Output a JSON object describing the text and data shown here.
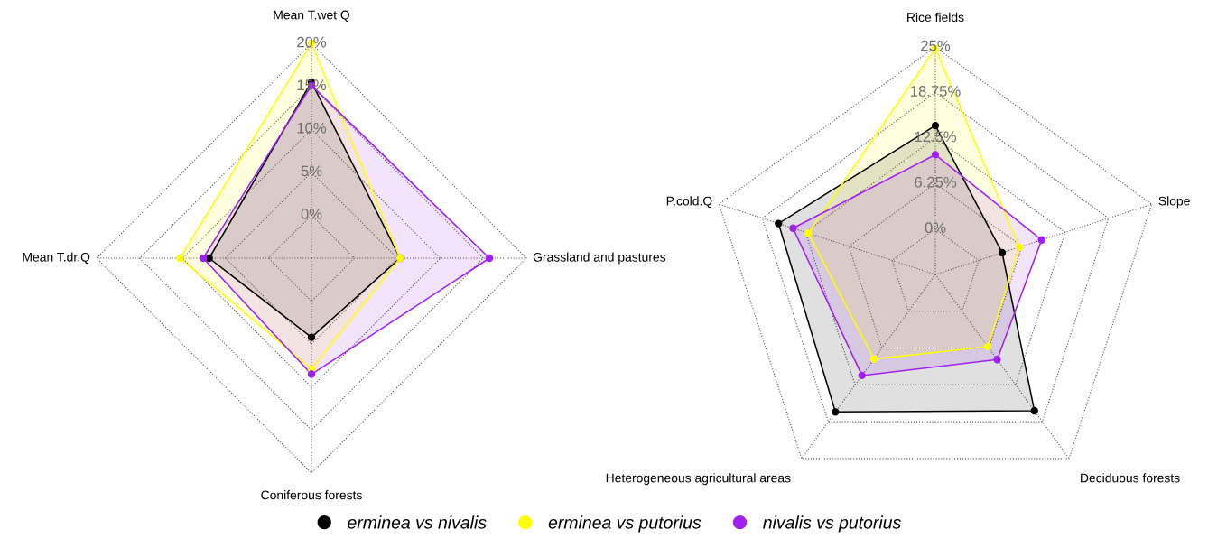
{
  "chart_data": [
    {
      "type": "radar",
      "categories": [
        "Mean T.wet Q",
        "Grassland and pastures",
        "Coniferous forests",
        "Mean T.dr.Q"
      ],
      "ylim": [
        -5,
        20
      ],
      "yticks": [
        {
          "value": 0,
          "label": "0%"
        },
        {
          "value": 5,
          "label": "5%"
        },
        {
          "value": 10,
          "label": "10%"
        },
        {
          "value": 15,
          "label": "15%"
        },
        {
          "value": 20,
          "label": "20%"
        }
      ],
      "grid": true,
      "marker": "circle",
      "legend": "bottom",
      "series": [
        {
          "name": "erminea vs nivalis",
          "color": "#000000",
          "values": [
            15.5,
            5.3,
            4.2,
            6.9
          ]
        },
        {
          "name": "erminea vs putorius",
          "color": "#ffff00",
          "values": [
            20,
            5.3,
            7.9,
            10.3
          ]
        },
        {
          "name": "nivalis vs putorius",
          "color": "#a020f0",
          "values": [
            15.1,
            15.7,
            8.5,
            7.6
          ]
        }
      ]
    },
    {
      "type": "radar",
      "categories": [
        "Rice fields",
        "Slope",
        "Deciduous forests",
        "Heterogeneous agricultural areas",
        "P.cold.Q"
      ],
      "ylim": [
        -6.25,
        25
      ],
      "yticks": [
        {
          "value": 0,
          "label": "0%"
        },
        {
          "value": 6.25,
          "label": "6.25%"
        },
        {
          "value": 12.5,
          "label": "12.5%"
        },
        {
          "value": 18.75,
          "label": "18.75%"
        },
        {
          "value": 25,
          "label": "25%"
        }
      ],
      "grid": true,
      "marker": "circle",
      "legend": "bottom",
      "series": [
        {
          "name": "erminea vs nivalis",
          "color": "#000000",
          "values": [
            14.2,
            3.4,
            16.9,
            17.1,
            16.4
          ]
        },
        {
          "name": "erminea vs putorius",
          "color": "#ffff00",
          "values": [
            24.8,
            5.9,
            6.0,
            8.1,
            12.1
          ]
        },
        {
          "name": "nivalis vs putorius",
          "color": "#a020f0",
          "values": [
            10.2,
            9.1,
            8.2,
            10.9,
            14.3
          ]
        }
      ]
    }
  ]
}
